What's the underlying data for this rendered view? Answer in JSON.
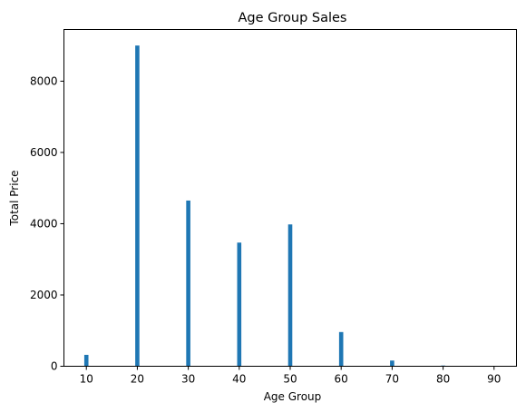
{
  "chart_data": {
    "type": "bar",
    "title": "Age Group Sales",
    "xlabel": "Age Group",
    "ylabel": "Total Price",
    "x": [
      10,
      20,
      30,
      40,
      50,
      60,
      70,
      80,
      90
    ],
    "values": [
      320,
      9000,
      4650,
      3470,
      3980,
      960,
      160,
      20,
      0
    ],
    "xticks": [
      10,
      20,
      30,
      40,
      50,
      60,
      70,
      80,
      90
    ],
    "yticks": [
      0,
      2000,
      4000,
      6000,
      8000
    ],
    "xlim": [
      5.6,
      94.4
    ],
    "ylim": [
      0,
      9450
    ],
    "grid": false,
    "bar_color": "#1f77b4"
  }
}
